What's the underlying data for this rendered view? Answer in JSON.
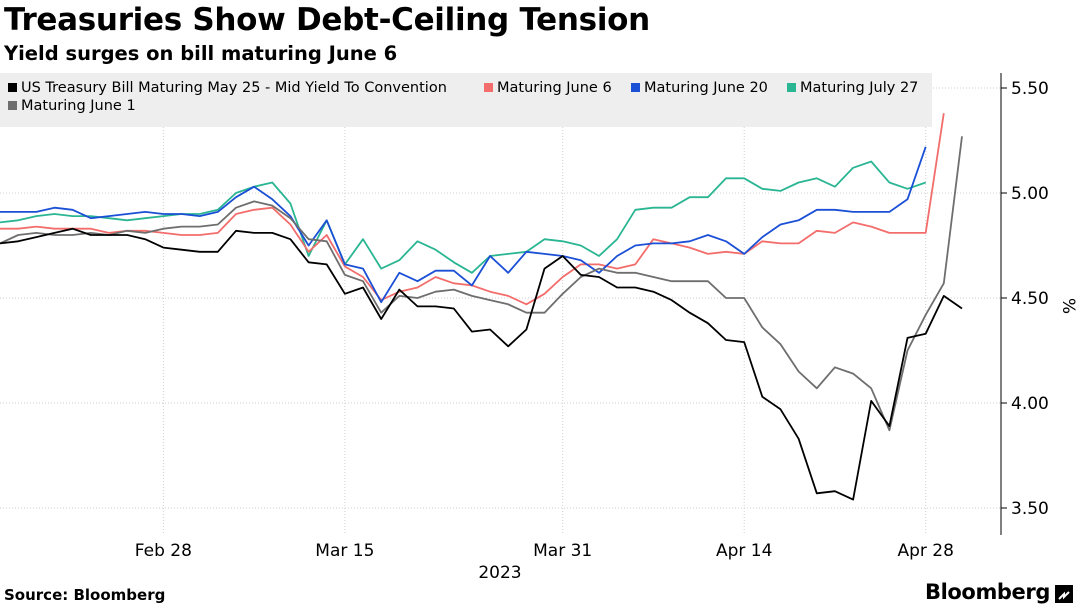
{
  "title": "Treasuries Show Debt-Ceiling Tension",
  "subtitle": "Yield surges on bill maturing June 6",
  "source": "Source: Bloomberg",
  "brand": "Bloomberg",
  "chart_data": {
    "type": "line",
    "ylabel": "%",
    "ylim": [
      3.35,
      5.55
    ],
    "y_ticks": [
      3.5,
      4.0,
      4.5,
      5.0,
      5.5
    ],
    "y_tick_labels": [
      "3.50",
      "4.00",
      "4.50",
      "5.00",
      "5.50"
    ],
    "x_ticks": [
      {
        "label": "Feb 28",
        "index": 9
      },
      {
        "label": "Mar 15",
        "index": 19
      },
      {
        "label": "Mar 31",
        "index": 31
      },
      {
        "label": "Apr 14",
        "index": 41
      },
      {
        "label": "Apr 28",
        "index": 51
      }
    ],
    "x_year_label": "2023",
    "x_count": 54,
    "series": [
      {
        "name": "Maturing July 27",
        "color": "#2ab593",
        "values": [
          4.86,
          4.87,
          4.89,
          4.9,
          4.89,
          4.89,
          4.88,
          4.87,
          4.88,
          4.89,
          4.9,
          4.9,
          4.92,
          5.0,
          5.03,
          5.05,
          4.95,
          4.7,
          4.87,
          4.66,
          4.78,
          4.64,
          4.68,
          4.77,
          4.73,
          4.67,
          4.62,
          4.7,
          4.71,
          4.72,
          4.78,
          4.77,
          4.75,
          4.7,
          4.78,
          4.92,
          4.93,
          4.93,
          4.98,
          4.98,
          5.07,
          5.07,
          5.02,
          5.01,
          5.05,
          5.07,
          5.03,
          5.12,
          5.15,
          5.05,
          5.02,
          5.05
        ]
      },
      {
        "name": "Maturing June 6",
        "color": "#f26d6b",
        "values": [
          4.83,
          4.83,
          4.84,
          4.83,
          4.83,
          4.83,
          4.81,
          4.82,
          4.82,
          4.81,
          4.8,
          4.8,
          4.81,
          4.9,
          4.92,
          4.93,
          4.85,
          4.72,
          4.8,
          4.65,
          4.6,
          4.49,
          4.53,
          4.55,
          4.6,
          4.57,
          4.56,
          4.53,
          4.51,
          4.47,
          4.52,
          4.6,
          4.66,
          4.66,
          4.64,
          4.66,
          4.78,
          4.76,
          4.74,
          4.71,
          4.72,
          4.71,
          4.77,
          4.76,
          4.76,
          4.82,
          4.81,
          4.86,
          4.84,
          4.81,
          4.81,
          4.81,
          5.38
        ]
      },
      {
        "name": "Maturing June 20",
        "color": "#1a4fd6",
        "values": [
          4.91,
          4.91,
          4.91,
          4.93,
          4.92,
          4.88,
          4.89,
          4.9,
          4.91,
          4.9,
          4.9,
          4.89,
          4.91,
          4.98,
          5.03,
          4.97,
          4.89,
          4.75,
          4.87,
          4.66,
          4.64,
          4.48,
          4.62,
          4.58,
          4.63,
          4.63,
          4.56,
          4.7,
          4.62,
          4.72,
          4.71,
          4.7,
          4.68,
          4.62,
          4.7,
          4.75,
          4.76,
          4.76,
          4.77,
          4.8,
          4.77,
          4.71,
          4.79,
          4.85,
          4.87,
          4.92,
          4.92,
          4.91,
          4.91,
          4.91,
          4.97,
          5.22
        ]
      },
      {
        "name": "Maturing June 1",
        "color": "#6e6e6e",
        "values": [
          4.76,
          4.8,
          4.81,
          4.8,
          4.8,
          4.81,
          4.8,
          4.82,
          4.81,
          4.83,
          4.84,
          4.84,
          4.85,
          4.93,
          4.96,
          4.94,
          4.88,
          4.78,
          4.77,
          4.61,
          4.58,
          4.43,
          4.51,
          4.5,
          4.53,
          4.54,
          4.51,
          4.49,
          4.47,
          4.43,
          4.43,
          4.52,
          4.6,
          4.64,
          4.62,
          4.62,
          4.6,
          4.58,
          4.58,
          4.58,
          4.5,
          4.5,
          4.36,
          4.28,
          4.15,
          4.07,
          4.17,
          4.14,
          4.07,
          3.87,
          4.25,
          4.42,
          4.57,
          5.27
        ]
      },
      {
        "name": "US Treasury Bill Maturing May 25 - Mid Yield To Convention",
        "color": "#000000",
        "values": [
          4.76,
          4.77,
          4.79,
          4.81,
          4.83,
          4.8,
          4.8,
          4.8,
          4.78,
          4.74,
          4.73,
          4.72,
          4.72,
          4.82,
          4.81,
          4.81,
          4.78,
          4.67,
          4.66,
          4.52,
          4.55,
          4.4,
          4.54,
          4.46,
          4.46,
          4.45,
          4.34,
          4.35,
          4.27,
          4.35,
          4.64,
          4.7,
          4.61,
          4.6,
          4.55,
          4.55,
          4.53,
          4.49,
          4.43,
          4.38,
          4.3,
          4.29,
          4.03,
          3.97,
          3.83,
          3.57,
          3.58,
          3.54,
          4.01,
          3.89,
          4.31,
          4.33,
          4.51,
          4.45
        ]
      }
    ],
    "legend": {
      "placement": "top-left",
      "entries": [
        {
          "label": "US Treasury Bill Maturing May 25 - Mid Yield To Convention",
          "color": "#000000"
        },
        {
          "label": "Maturing June 6",
          "color": "#f26d6b"
        },
        {
          "label": "Maturing June 20",
          "color": "#1a4fd6"
        },
        {
          "label": "Maturing July 27",
          "color": "#2ab593"
        },
        {
          "label": "Maturing June 1",
          "color": "#6e6e6e"
        }
      ]
    }
  }
}
